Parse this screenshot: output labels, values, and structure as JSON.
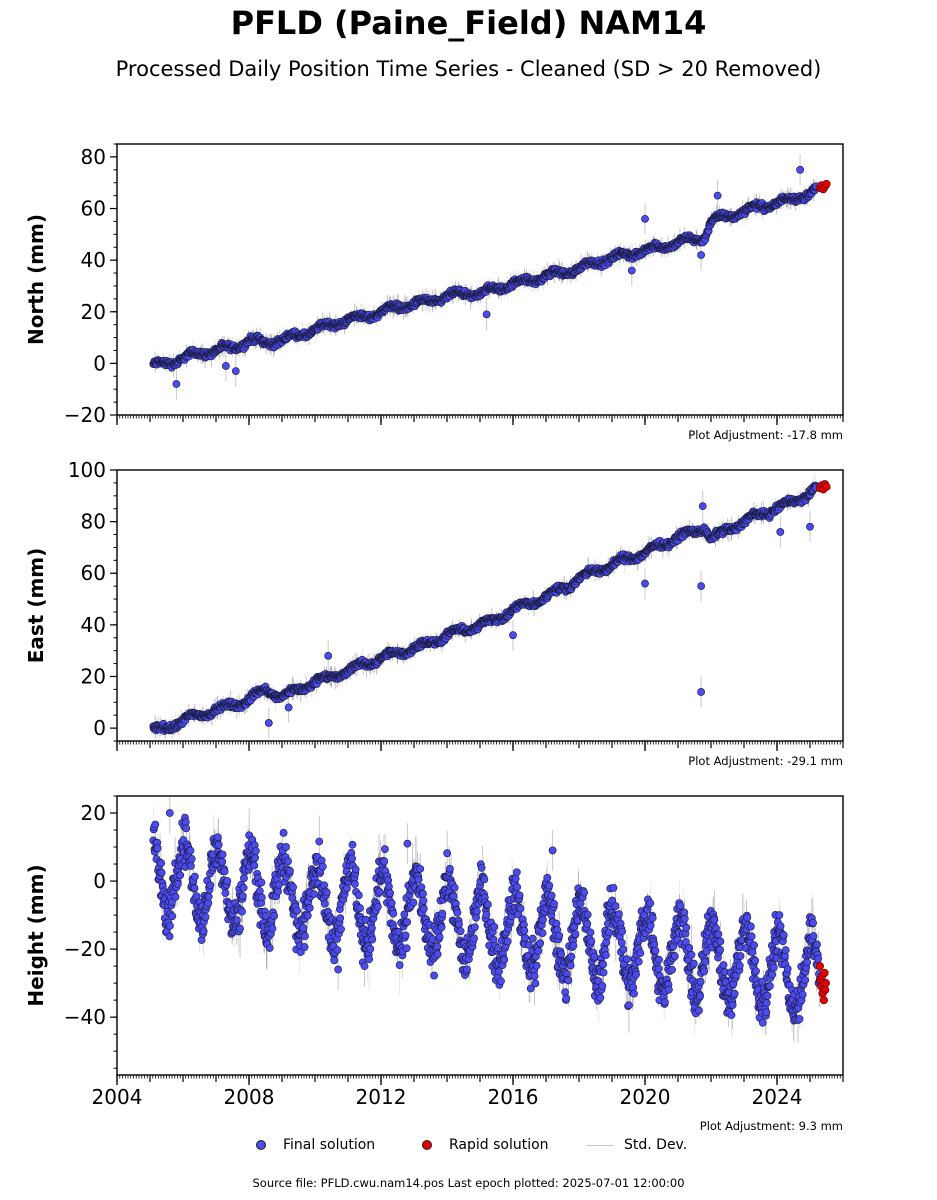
{
  "page": {
    "title": "PFLD (Paine_Field) NAM14",
    "subtitle": "Processed Daily Position Time Series - Cleaned (SD > 20 Removed)",
    "source": "Source file: PFLD.cwu.nam14.pos  Last epoch plotted: 2025-07-01 12:00:00"
  },
  "legend": {
    "final_label": "Final solution",
    "rapid_label": "Rapid solution",
    "std_label": "Std. Dev.",
    "final_color": "#4b4bf0",
    "rapid_color": "#e00000",
    "std_color": "#c8c8c8"
  },
  "chart_data": [
    {
      "type": "scatter",
      "ylabel": "North (mm)",
      "adjustment": "Plot Adjustment: -17.8 mm",
      "xlim": [
        2004,
        2026
      ],
      "ylim": [
        -20,
        85
      ],
      "yticks": [
        -20,
        0,
        20,
        40,
        60,
        80
      ],
      "ytick_labels": [
        "−20",
        "0",
        "20",
        "40",
        "60",
        "80"
      ],
      "xticks": [
        2004,
        2008,
        2012,
        2016,
        2020,
        2024
      ],
      "show_xtick_labels": false,
      "series": [
        {
          "role": "final",
          "x": [
            2005.1,
            2005.5,
            2006.0,
            2006.5,
            2007.0,
            2007.5,
            2008.0,
            2008.5,
            2009.0,
            2009.5,
            2010.0,
            2010.5,
            2011.0,
            2011.5,
            2012.0,
            2012.5,
            2013.0,
            2013.5,
            2014.0,
            2014.5,
            2015.0,
            2015.5,
            2016.0,
            2016.5,
            2017.0,
            2017.5,
            2018.0,
            2018.5,
            2019.0,
            2019.5,
            2020.0,
            2020.5,
            2021.0,
            2021.5,
            2021.8,
            2022.0,
            2022.5,
            2023.0,
            2023.5,
            2024.0,
            2024.5,
            2025.0,
            2025.2
          ],
          "y": [
            -1,
            0,
            2,
            4,
            5,
            6,
            9,
            8,
            9,
            11,
            13,
            15,
            17,
            18,
            20,
            22,
            23,
            24,
            26,
            27,
            27,
            29,
            31,
            32,
            34,
            35,
            37,
            39,
            41,
            42,
            44,
            45,
            47,
            48,
            49,
            55,
            57,
            59,
            61,
            62,
            64,
            66,
            67
          ]
        },
        {
          "role": "rapid",
          "x": [
            2025.3,
            2025.35,
            2025.4,
            2025.45,
            2025.5
          ],
          "y": [
            68,
            69,
            67.5,
            68.5,
            69.5
          ]
        }
      ],
      "outliers": {
        "x": [
          2005.8,
          2007.3,
          2007.6,
          2015.2,
          2020.0,
          2019.6,
          2021.7,
          2022.2,
          2024.7
        ],
        "y": [
          -8,
          -1,
          -3,
          19,
          56,
          36,
          42,
          65,
          75
        ]
      }
    },
    {
      "type": "scatter",
      "ylabel": "East (mm)",
      "adjustment": "Plot Adjustment: -29.1 mm",
      "xlim": [
        2004,
        2026
      ],
      "ylim": [
        -5,
        100
      ],
      "yticks": [
        0,
        20,
        40,
        60,
        80,
        100
      ],
      "ytick_labels": [
        "0",
        "20",
        "40",
        "60",
        "80",
        "100"
      ],
      "xticks": [
        2004,
        2008,
        2012,
        2016,
        2020,
        2024
      ],
      "show_xtick_labels": false,
      "series": [
        {
          "role": "final",
          "x": [
            2005.1,
            2005.5,
            2006.0,
            2006.5,
            2007.0,
            2007.5,
            2008.0,
            2008.5,
            2009.0,
            2009.5,
            2010.0,
            2010.5,
            2011.0,
            2011.5,
            2012.0,
            2012.5,
            2013.0,
            2013.5,
            2014.0,
            2014.5,
            2015.0,
            2015.5,
            2016.0,
            2016.5,
            2017.0,
            2017.5,
            2018.0,
            2018.5,
            2019.0,
            2019.5,
            2020.0,
            2020.5,
            2021.0,
            2021.5,
            2021.8,
            2022.0,
            2022.5,
            2023.0,
            2023.5,
            2024.0,
            2024.5,
            2025.0,
            2025.2
          ],
          "y": [
            -1,
            0,
            3,
            5,
            7,
            9,
            11,
            15,
            12,
            15,
            18,
            20,
            22,
            25,
            27,
            29,
            31,
            33,
            36,
            38,
            40,
            42,
            46,
            48,
            51,
            54,
            58,
            61,
            63,
            66,
            68,
            71,
            74,
            76,
            78,
            73,
            77,
            80,
            83,
            85,
            88,
            91,
            93
          ]
        },
        {
          "role": "rapid",
          "x": [
            2025.3,
            2025.35,
            2025.4,
            2025.45,
            2025.5
          ],
          "y": [
            93,
            94,
            92.5,
            94.5,
            93.5
          ]
        }
      ],
      "outliers": {
        "x": [
          2008.6,
          2009.2,
          2010.4,
          2016.0,
          2020.0,
          2021.7,
          2021.7,
          2021.75,
          2024.1,
          2025.0
        ],
        "y": [
          2,
          8,
          28,
          36,
          56,
          14,
          55,
          86,
          76,
          78
        ]
      }
    },
    {
      "type": "scatter",
      "ylabel": "Height (mm)",
      "adjustment": "Plot Adjustment: 9.3 mm",
      "xlim": [
        2004,
        2026
      ],
      "ylim": [
        -57,
        25
      ],
      "yticks": [
        -40,
        -20,
        0,
        20
      ],
      "ytick_labels": [
        "−40",
        "−20",
        "0",
        "20"
      ],
      "xticks": [
        2004,
        2008,
        2012,
        2016,
        2020,
        2024
      ],
      "xtick_labels": [
        "2004",
        "2008",
        "2012",
        "2016",
        "2020",
        "2024"
      ],
      "show_xtick_labels": true,
      "seasonal": {
        "trend_start": 2,
        "trend_end": -28,
        "x_start": 2005.1,
        "x_end": 2025.3,
        "amplitude": 11,
        "noise": 5
      },
      "series": [
        {
          "role": "rapid",
          "x": [
            2025.3,
            2025.32,
            2025.34,
            2025.36,
            2025.38,
            2025.4,
            2025.42,
            2025.44,
            2025.46,
            2025.48
          ],
          "y": [
            -25,
            -29,
            -31,
            -28,
            -33,
            -30,
            -35,
            -27,
            -32,
            -30
          ]
        }
      ],
      "outliers": {
        "x": [
          2010.7,
          2011.5,
          2012.8,
          2017.2,
          2005.6
        ],
        "y": [
          -26,
          -25,
          11,
          9,
          20
        ]
      }
    }
  ]
}
